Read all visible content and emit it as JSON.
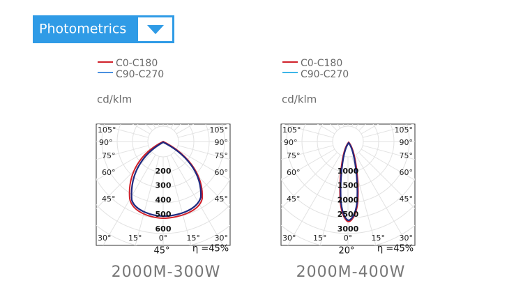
{
  "header": {
    "title": "Photometrics"
  },
  "panels": [
    {
      "legend": [
        "C0-C180",
        "C90-C270"
      ],
      "unit": "cd/klm",
      "angles_left": [
        "105°",
        "90°",
        "75°",
        "60°",
        "45°",
        "30°",
        "15°"
      ],
      "angle_center": "0°",
      "angles_right": [
        "105°",
        "90°",
        "75°",
        "60°",
        "45°",
        "30°",
        "15°"
      ],
      "radial": [
        "200",
        "300",
        "400",
        "500",
        "600"
      ],
      "beam": "45°",
      "efficiency": "η =45%",
      "caption": "2000M-300W"
    },
    {
      "legend": [
        "C0-C180",
        "C90-C270"
      ],
      "unit": "cd/klm",
      "angles_left": [
        "105°",
        "90°",
        "75°",
        "60°",
        "45°",
        "30°",
        "15°"
      ],
      "angle_center": "0°",
      "angles_right": [
        "105°",
        "90°",
        "75°",
        "60°",
        "45°",
        "30°",
        "15°"
      ],
      "radial": [
        "1000",
        "1500",
        "2000",
        "2500",
        "3000"
      ],
      "beam": "20°",
      "efficiency": "η =45%",
      "caption": "2000M-400W"
    }
  ]
}
